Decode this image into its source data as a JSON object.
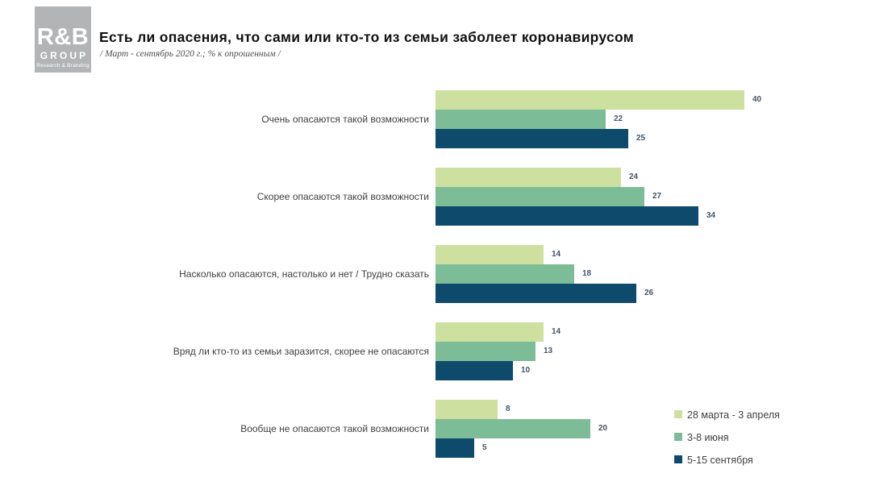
{
  "logo": {
    "line1": "R&B",
    "line2": "GROUP",
    "line3": "Research & Branding"
  },
  "header": {
    "title": "Есть ли опасения, что сами или кто-то из семьи заболеет коронавирусом",
    "subtitle": "/ Март - сентябрь 2020 г.; % к опрошенным /"
  },
  "chart_data": {
    "type": "bar",
    "orientation": "horizontal",
    "title": "Есть ли опасения, что сами или кто-то из семьи заболеет коронавирусом",
    "subtitle": "/ Март - сентябрь 2020 г.; % к опрошенным /",
    "units": "% к опрошенным",
    "categories": [
      "Очень опасаются такой возможности",
      "Скорее опасаются такой возможности",
      "Насколько опасаются, настолько и нет / Трудно сказать",
      "Вряд ли кто-то из семьи заразится, скорее не опасаются",
      "Вообще не опасаются такой возможности"
    ],
    "series": [
      {
        "name": "28 марта - 3 апреля",
        "color": "#cee0a0",
        "values": [
          40,
          24,
          14,
          14,
          8
        ]
      },
      {
        "name": "3-8 июня",
        "color": "#7cbd98",
        "values": [
          22,
          27,
          18,
          13,
          20
        ]
      },
      {
        "name": "5-15 сентября",
        "color": "#0d4a6c",
        "values": [
          25,
          34,
          26,
          10,
          5
        ]
      }
    ],
    "xlim": [
      0,
      42
    ],
    "value_labels": true,
    "grid": false,
    "legend_position": "bottom-right"
  }
}
